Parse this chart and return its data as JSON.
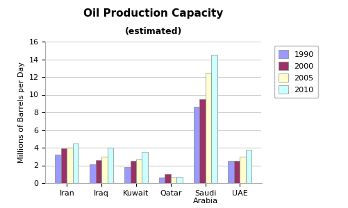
{
  "title": "Oil Production Capacity",
  "subtitle": "(estimated)",
  "ylabel": "Millions of Barrels per Day",
  "categories": [
    "Iran",
    "Iraq",
    "Kuwait",
    "Qatar",
    "Saudi\nArabia",
    "UAE"
  ],
  "years": [
    "1990",
    "2000",
    "2005",
    "2010"
  ],
  "values": {
    "1990": [
      3.2,
      2.1,
      1.8,
      0.6,
      8.6,
      2.5
    ],
    "2000": [
      3.9,
      2.6,
      2.5,
      1.0,
      9.5,
      2.5
    ],
    "2005": [
      4.0,
      3.0,
      2.7,
      0.6,
      12.5,
      3.0
    ],
    "2010": [
      4.5,
      4.0,
      3.5,
      0.7,
      14.5,
      3.8
    ]
  },
  "colors": {
    "1990": "#9999FF",
    "2000": "#993366",
    "2005": "#FFFFCC",
    "2010": "#CCFFFF"
  },
  "ylim": [
    0,
    16
  ],
  "yticks": [
    0,
    2,
    4,
    6,
    8,
    10,
    12,
    14,
    16
  ],
  "background_color": "#FFFFFF",
  "plot_bg_color": "#FFFFFF",
  "grid_color": "#CCCCCC",
  "bar_width": 0.17,
  "title_fontsize": 11,
  "subtitle_fontsize": 9,
  "tick_fontsize": 8,
  "ylabel_fontsize": 8,
  "legend_fontsize": 8
}
